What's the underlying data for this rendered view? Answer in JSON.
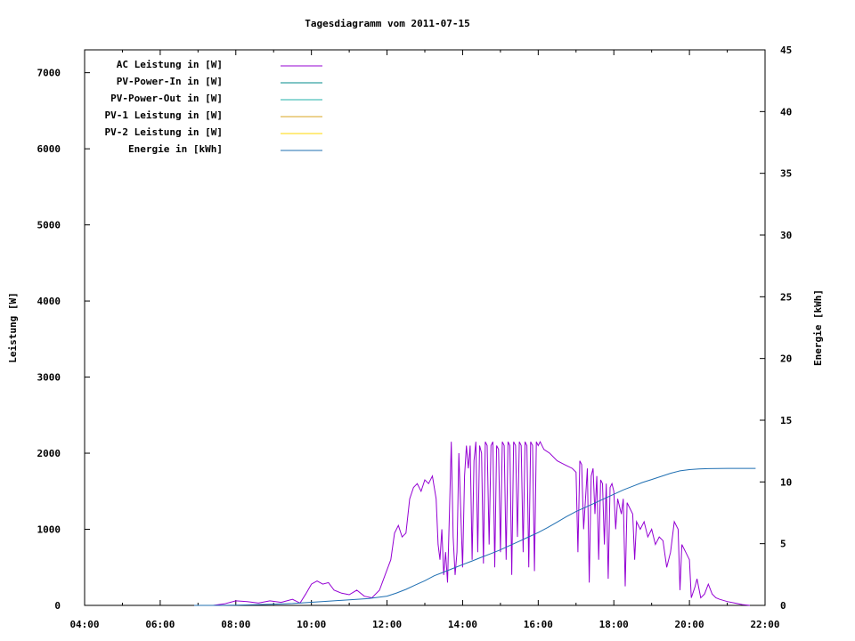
{
  "chart_data": {
    "type": "line",
    "title": "Tagesdiagramm vom 2011-07-15",
    "ylabel": "Leistung [W]",
    "y2label": "Energie [kWh]",
    "xlim": [
      4,
      22
    ],
    "ylim": [
      0,
      7300
    ],
    "y2lim": [
      0,
      45
    ],
    "x_ticks": [
      "04:00",
      "06:00",
      "08:00",
      "10:00",
      "12:00",
      "14:00",
      "16:00",
      "18:00",
      "20:00",
      "22:00"
    ],
    "y_ticks": [
      "0",
      "1000",
      "2000",
      "3000",
      "4000",
      "5000",
      "6000",
      "7000"
    ],
    "y2_ticks": [
      "0",
      "5",
      "10",
      "15",
      "20",
      "25",
      "30",
      "35",
      "40",
      "45"
    ],
    "legend_position": "top-left",
    "grid": false,
    "series": [
      {
        "name": "AC Leistung in [W]",
        "color": "#9400d3",
        "axis": "left",
        "points": [
          [
            6.9,
            0
          ],
          [
            7.4,
            0
          ],
          [
            7.7,
            20
          ],
          [
            8.0,
            60
          ],
          [
            8.3,
            50
          ],
          [
            8.6,
            30
          ],
          [
            8.9,
            60
          ],
          [
            9.2,
            40
          ],
          [
            9.5,
            80
          ],
          [
            9.7,
            30
          ],
          [
            9.85,
            150
          ],
          [
            10.0,
            280
          ],
          [
            10.15,
            320
          ],
          [
            10.3,
            280
          ],
          [
            10.45,
            300
          ],
          [
            10.6,
            200
          ],
          [
            10.8,
            160
          ],
          [
            11.0,
            140
          ],
          [
            11.2,
            200
          ],
          [
            11.4,
            120
          ],
          [
            11.6,
            100
          ],
          [
            11.8,
            200
          ],
          [
            11.95,
            400
          ],
          [
            12.1,
            600
          ],
          [
            12.2,
            950
          ],
          [
            12.3,
            1050
          ],
          [
            12.4,
            900
          ],
          [
            12.5,
            950
          ],
          [
            12.6,
            1400
          ],
          [
            12.7,
            1550
          ],
          [
            12.8,
            1600
          ],
          [
            12.9,
            1500
          ],
          [
            13.0,
            1650
          ],
          [
            13.1,
            1600
          ],
          [
            13.2,
            1700
          ],
          [
            13.3,
            1400
          ],
          [
            13.35,
            800
          ],
          [
            13.4,
            600
          ],
          [
            13.45,
            1000
          ],
          [
            13.5,
            400
          ],
          [
            13.55,
            700
          ],
          [
            13.6,
            300
          ],
          [
            13.65,
            1200
          ],
          [
            13.7,
            2150
          ],
          [
            13.75,
            900
          ],
          [
            13.8,
            400
          ],
          [
            13.85,
            700
          ],
          [
            13.9,
            2000
          ],
          [
            14.0,
            500
          ],
          [
            14.05,
            1700
          ],
          [
            14.1,
            2100
          ],
          [
            14.15,
            1800
          ],
          [
            14.2,
            2100
          ],
          [
            14.25,
            600
          ],
          [
            14.3,
            1900
          ],
          [
            14.35,
            2150
          ],
          [
            14.4,
            700
          ],
          [
            14.45,
            2100
          ],
          [
            14.5,
            2000
          ],
          [
            14.55,
            550
          ],
          [
            14.6,
            2150
          ],
          [
            14.65,
            2100
          ],
          [
            14.7,
            800
          ],
          [
            14.75,
            2100
          ],
          [
            14.8,
            2150
          ],
          [
            14.85,
            500
          ],
          [
            14.9,
            2100
          ],
          [
            14.95,
            2050
          ],
          [
            15.0,
            700
          ],
          [
            15.05,
            2150
          ],
          [
            15.1,
            2100
          ],
          [
            15.15,
            600
          ],
          [
            15.2,
            2150
          ],
          [
            15.25,
            2100
          ],
          [
            15.3,
            400
          ],
          [
            15.35,
            2150
          ],
          [
            15.4,
            2100
          ],
          [
            15.45,
            900
          ],
          [
            15.5,
            2150
          ],
          [
            15.55,
            2100
          ],
          [
            15.6,
            700
          ],
          [
            15.65,
            2150
          ],
          [
            15.7,
            2100
          ],
          [
            15.75,
            500
          ],
          [
            15.8,
            2150
          ],
          [
            15.85,
            2100
          ],
          [
            15.9,
            450
          ],
          [
            15.95,
            2150
          ],
          [
            16.0,
            2100
          ],
          [
            16.05,
            2150
          ],
          [
            16.15,
            2050
          ],
          [
            16.3,
            2000
          ],
          [
            16.5,
            1900
          ],
          [
            16.7,
            1850
          ],
          [
            16.9,
            1800
          ],
          [
            17.0,
            1750
          ],
          [
            17.05,
            700
          ],
          [
            17.1,
            1900
          ],
          [
            17.15,
            1850
          ],
          [
            17.2,
            1000
          ],
          [
            17.3,
            1800
          ],
          [
            17.35,
            300
          ],
          [
            17.4,
            1700
          ],
          [
            17.45,
            1800
          ],
          [
            17.5,
            1200
          ],
          [
            17.55,
            1700
          ],
          [
            17.6,
            600
          ],
          [
            17.65,
            1650
          ],
          [
            17.7,
            1600
          ],
          [
            17.75,
            800
          ],
          [
            17.8,
            1600
          ],
          [
            17.85,
            350
          ],
          [
            17.9,
            1550
          ],
          [
            17.95,
            1600
          ],
          [
            18.0,
            1500
          ],
          [
            18.05,
            1000
          ],
          [
            18.1,
            1400
          ],
          [
            18.15,
            1300
          ],
          [
            18.2,
            1200
          ],
          [
            18.25,
            1400
          ],
          [
            18.3,
            250
          ],
          [
            18.35,
            1350
          ],
          [
            18.4,
            1300
          ],
          [
            18.5,
            1200
          ],
          [
            18.55,
            600
          ],
          [
            18.6,
            1100
          ],
          [
            18.7,
            1000
          ],
          [
            18.8,
            1100
          ],
          [
            18.9,
            900
          ],
          [
            19.0,
            1000
          ],
          [
            19.1,
            800
          ],
          [
            19.2,
            900
          ],
          [
            19.3,
            850
          ],
          [
            19.4,
            500
          ],
          [
            19.5,
            700
          ],
          [
            19.6,
            1100
          ],
          [
            19.7,
            1000
          ],
          [
            19.75,
            200
          ],
          [
            19.8,
            800
          ],
          [
            19.9,
            700
          ],
          [
            20.0,
            600
          ],
          [
            20.05,
            100
          ],
          [
            20.15,
            250
          ],
          [
            20.2,
            350
          ],
          [
            20.3,
            100
          ],
          [
            20.4,
            150
          ],
          [
            20.5,
            280
          ],
          [
            20.6,
            150
          ],
          [
            20.7,
            100
          ],
          [
            20.8,
            80
          ],
          [
            21.0,
            50
          ],
          [
            21.2,
            30
          ],
          [
            21.4,
            10
          ],
          [
            21.6,
            0
          ]
        ]
      },
      {
        "name": "PV-Power-In in [W]",
        "color": "#008b8b",
        "axis": "left",
        "points": []
      },
      {
        "name": "PV-Power-Out in [W]",
        "color": "#20b2aa",
        "axis": "left",
        "points": []
      },
      {
        "name": "PV-1 Leistung in [W]",
        "color": "#daa520",
        "axis": "left",
        "points": []
      },
      {
        "name": "PV-2 Leistung in [W]",
        "color": "#ffd700",
        "axis": "left",
        "points": []
      },
      {
        "name": "Energie in [kWh]",
        "color": "#1f6fb2",
        "axis": "right",
        "points": [
          [
            6.9,
            0
          ],
          [
            7.5,
            0
          ],
          [
            8.0,
            0.02
          ],
          [
            8.5,
            0.05
          ],
          [
            9.0,
            0.1
          ],
          [
            9.5,
            0.15
          ],
          [
            10.0,
            0.25
          ],
          [
            10.5,
            0.35
          ],
          [
            11.0,
            0.45
          ],
          [
            11.5,
            0.55
          ],
          [
            12.0,
            0.75
          ],
          [
            12.25,
            1.0
          ],
          [
            12.5,
            1.3
          ],
          [
            12.75,
            1.65
          ],
          [
            13.0,
            2.0
          ],
          [
            13.25,
            2.4
          ],
          [
            13.5,
            2.7
          ],
          [
            13.75,
            3.0
          ],
          [
            14.0,
            3.3
          ],
          [
            14.25,
            3.6
          ],
          [
            14.5,
            3.9
          ],
          [
            14.75,
            4.2
          ],
          [
            15.0,
            4.5
          ],
          [
            15.25,
            4.85
          ],
          [
            15.5,
            5.2
          ],
          [
            15.75,
            5.55
          ],
          [
            16.0,
            5.9
          ],
          [
            16.25,
            6.3
          ],
          [
            16.5,
            6.75
          ],
          [
            16.75,
            7.2
          ],
          [
            17.0,
            7.6
          ],
          [
            17.25,
            7.95
          ],
          [
            17.5,
            8.3
          ],
          [
            17.75,
            8.65
          ],
          [
            18.0,
            9.0
          ],
          [
            18.25,
            9.35
          ],
          [
            18.5,
            9.65
          ],
          [
            18.75,
            9.95
          ],
          [
            19.0,
            10.2
          ],
          [
            19.25,
            10.45
          ],
          [
            19.5,
            10.7
          ],
          [
            19.75,
            10.9
          ],
          [
            20.0,
            11.0
          ],
          [
            20.25,
            11.05
          ],
          [
            20.5,
            11.08
          ],
          [
            21.0,
            11.1
          ],
          [
            21.5,
            11.1
          ],
          [
            21.75,
            11.1
          ]
        ]
      }
    ]
  }
}
